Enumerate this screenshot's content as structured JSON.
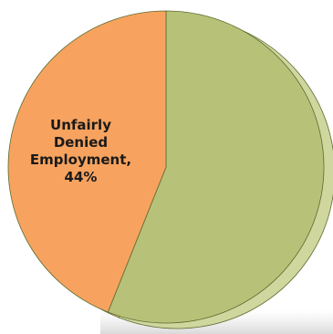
{
  "chart_data": {
    "type": "pie",
    "title": "",
    "style": "3d-tilted",
    "start_angle_deg": 0,
    "direction": "clockwise",
    "slices": [
      {
        "label": "",
        "value": 56,
        "color": "#b8c178",
        "side_color": "#cfd69e",
        "exploded": false
      },
      {
        "label": "Unfairly Denied Employment, 44%",
        "label_lines": [
          "Unfairly",
          "Denied",
          "Employment,",
          "44%"
        ],
        "value": 44,
        "color": "#f7a35f",
        "side_color": "#f2b98a",
        "exploded": false
      }
    ],
    "legend": "none",
    "edge_color": "#5a6b2e"
  }
}
